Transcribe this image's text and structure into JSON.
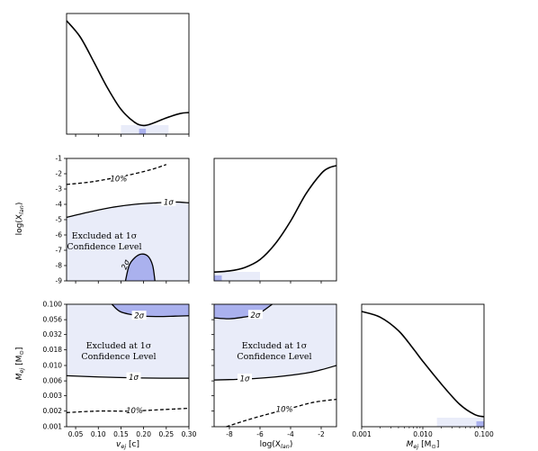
{
  "chart_data": [
    {
      "panel": "vej-marginal",
      "type": "line",
      "x": [
        0.03,
        0.06,
        0.09,
        0.12,
        0.15,
        0.18,
        0.2,
        0.22,
        0.25,
        0.28,
        0.3
      ],
      "y": [
        1.0,
        0.85,
        0.62,
        0.38,
        0.18,
        0.06,
        0.03,
        0.05,
        0.1,
        0.14,
        0.15
      ],
      "xlim": [
        0.03,
        0.3
      ],
      "shade_light": [
        0.15,
        0.255
      ],
      "shade_dark": [
        0.19,
        0.205
      ]
    },
    {
      "panel": "vej-vs-logXlan",
      "type": "contour",
      "xlim": [
        0.03,
        0.3
      ],
      "ylim": [
        -9,
        -1
      ],
      "ylabel": "log(X",
      "ylabel_sub": "lan",
      "ylabel_end": ")",
      "yticks": [
        "-1",
        "-2",
        "-3",
        "-4",
        "-5",
        "-6",
        "-7",
        "-8",
        "-9"
      ],
      "annotation_line1": "Excluded at 1σ",
      "annotation_line2": "Confidence Level",
      "contours": [
        {
          "label": "10%",
          "style": "dashed",
          "x": [
            0.03,
            0.08,
            0.13,
            0.18,
            0.22,
            0.25
          ],
          "y": [
            -2.7,
            -2.55,
            -2.3,
            -2.0,
            -1.7,
            -1.4
          ]
        },
        {
          "label": "1σ",
          "style": "solid",
          "x": [
            0.03,
            0.08,
            0.13,
            0.18,
            0.23,
            0.27,
            0.3
          ],
          "y": [
            -4.85,
            -4.5,
            -4.2,
            -4.0,
            -3.9,
            -3.85,
            -3.9
          ]
        },
        {
          "label": "2σ",
          "style": "solid",
          "x": [
            0.16,
            0.168,
            0.18,
            0.195,
            0.21,
            0.22,
            0.225
          ],
          "y": [
            -9,
            -8.0,
            -7.5,
            -7.25,
            -7.4,
            -8.0,
            -9
          ]
        }
      ]
    },
    {
      "panel": "logXlan-marginal",
      "type": "line",
      "x": [
        -9,
        -8,
        -7,
        -6,
        -5,
        -4,
        -3,
        -2,
        -1.5,
        -1
      ],
      "y": [
        0.03,
        0.04,
        0.07,
        0.14,
        0.28,
        0.48,
        0.72,
        0.9,
        0.95,
        0.97
      ],
      "xlim": [
        -9,
        -1
      ],
      "shade_light": [
        -9,
        -6
      ],
      "shade_dark": [
        -9,
        -8.5
      ]
    },
    {
      "panel": "vej-vs-Mej",
      "type": "contour",
      "xlim": [
        0.03,
        0.3
      ],
      "ylim": [
        0.001,
        0.1
      ],
      "yscale": "log",
      "xlabel": "v",
      "xlabel_sub": "ej",
      "xlabel_end": " [c]",
      "ylabel": "M",
      "ylabel_sub": "ej",
      "ylabel_end": " [M",
      "ylabel_sub2": "⊙",
      "ylabel_close": "]",
      "xticks": [
        "0.05",
        "0.10",
        "0.15",
        "0.20",
        "0.25",
        "0.30"
      ],
      "yticks": [
        "0.100",
        "0.056",
        "0.032",
        "0.018",
        "0.010",
        "0.006",
        "0.003",
        "0.002",
        "0.001"
      ],
      "annotation_line1": "Excluded at 1σ",
      "annotation_line2": "Confidence Level",
      "contours": [
        {
          "label": "10%",
          "style": "dashed",
          "x": [
            0.03,
            0.1,
            0.17,
            0.24,
            0.3
          ],
          "y": [
            0.0017,
            0.0018,
            0.0018,
            0.0019,
            0.002
          ]
        },
        {
          "label": "1σ",
          "style": "solid",
          "x": [
            0.03,
            0.1,
            0.17,
            0.24,
            0.3
          ],
          "y": [
            0.0068,
            0.0065,
            0.0063,
            0.0062,
            0.0062
          ]
        },
        {
          "label": "2σ",
          "style": "solid",
          "x": [
            0.13,
            0.15,
            0.19,
            0.23,
            0.27,
            0.3
          ],
          "y": [
            0.1,
            0.075,
            0.065,
            0.063,
            0.064,
            0.065
          ]
        }
      ]
    },
    {
      "panel": "logXlan-vs-Mej",
      "type": "contour",
      "xlim": [
        -9,
        -1
      ],
      "ylim": [
        0.001,
        0.1
      ],
      "yscale": "log",
      "xlabel": "log(X",
      "xlabel_sub": "lan",
      "xlabel_end": ")",
      "xticks": [
        "-8",
        "-6",
        "-4",
        "-2"
      ],
      "annotation_line1": "Excluded at 1σ",
      "annotation_line2": "Confidence Level",
      "contours": [
        {
          "label": "10%",
          "style": "dashed",
          "x": [
            -8.2,
            -7,
            -5.5,
            -4,
            -2.5,
            -1
          ],
          "y": [
            0.001,
            0.00125,
            0.0016,
            0.002,
            0.0025,
            0.0028
          ]
        },
        {
          "label": "1σ",
          "style": "solid",
          "x": [
            -9,
            -7,
            -5,
            -3,
            -2,
            -1
          ],
          "y": [
            0.0058,
            0.006,
            0.0065,
            0.0075,
            0.0085,
            0.01
          ]
        },
        {
          "label": "2σ",
          "style": "solid",
          "x": [
            -9,
            -8,
            -7,
            -6.4,
            -6,
            -5.2
          ],
          "y": [
            0.06,
            0.058,
            0.062,
            0.066,
            0.072,
            0.1
          ]
        }
      ]
    },
    {
      "panel": "Mej-marginal",
      "type": "line",
      "x": [
        0.001,
        0.002,
        0.004,
        0.007,
        0.01,
        0.02,
        0.04,
        0.07,
        0.1
      ],
      "y": [
        0.97,
        0.92,
        0.8,
        0.64,
        0.53,
        0.33,
        0.15,
        0.06,
        0.04
      ],
      "xlim": [
        0.001,
        0.1
      ],
      "xscale": "log",
      "xlabel": "M",
      "xlabel_sub": "ej",
      "xlabel_end": " [M",
      "xlabel_sub2": "⊙",
      "xlabel_close": "]",
      "xticks": [
        "0.001",
        "0.010",
        "0.100"
      ],
      "shade_light": [
        0.017,
        0.1
      ],
      "shade_dark": [
        0.075,
        0.1
      ]
    }
  ]
}
